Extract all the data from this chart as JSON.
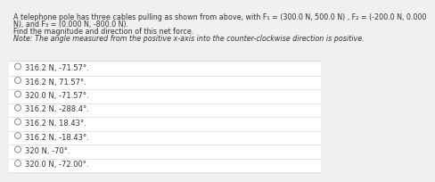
{
  "title_line1": "A telephone pole has three cables pulling as shown from above, with F₁ = (300.0 N, 500.0 N) , F₂ = (-200.0 N, 0.000",
  "title_line2": "N), and F₃ = (0.000 N, -800.0 N).",
  "instruction": "Find the magnitude and direction of this net force.",
  "note": "Note: The angle measured from the positive x-axis into the counter-clockwise direction is positive.",
  "options": [
    "316.2 N, -71.57°.",
    "316.2 N, 71.57°.",
    "320.0 N, -71.57°.",
    "316.2 N, -288.4°.",
    "316.2 N, 18.43°.",
    "316.2 N, -18.43°.",
    "320 N, -70°.",
    "320.0 N, -72.00°."
  ],
  "bg_color": "#f0f0f0",
  "options_bg_color": "#ffffff",
  "text_color": "#333333",
  "divider_color": "#cccccc",
  "circle_color": "#888888",
  "title_fontsize": 5.8,
  "option_fontsize": 6.0,
  "note_fontsize": 5.8
}
